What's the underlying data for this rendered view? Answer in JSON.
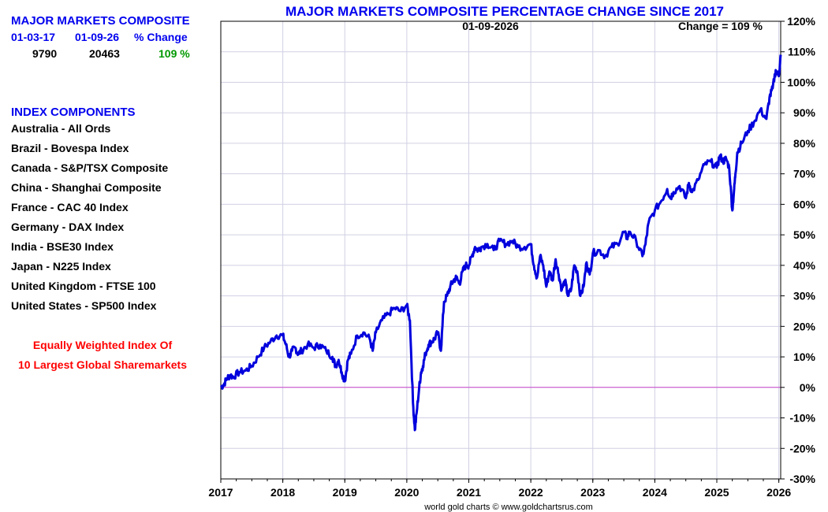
{
  "summary": {
    "title": "MAJOR MARKETS COMPOSITE",
    "col1_header": "01-03-17",
    "col2_header": "01-09-26",
    "col3_header": "% Change",
    "col1_value": "9790",
    "col2_value": "20463",
    "col3_value": "109 %"
  },
  "components": {
    "title": "INDEX COMPONENTS",
    "items": [
      "Australia - All Ords",
      "Brazil - Bovespa Index",
      "Canada - S&P/TSX Composite",
      "China - Shanghai Composite",
      "France - CAC 40 Index",
      "Germany - DAX Index",
      "India - BSE30 Index",
      "Japan - N225 Index",
      "United Kingdom - FTSE 100",
      "United States - SP500 Index"
    ]
  },
  "note": {
    "line1": "Equally Weighted Index Of",
    "line2": "10 Largest Global Sharemarkets"
  },
  "colors": {
    "series": "#0000dd",
    "zero_line": "#cc44cc",
    "grid": "#d0d0e4",
    "title": "#0000ee"
  },
  "chart_data": {
    "type": "line",
    "title": "MAJOR MARKETS COMPOSITE PERCENTAGE CHANGE SINCE 2017",
    "date_label": "01-09-2026",
    "change_label": "Change = 109 %",
    "credit": "world gold charts © www.goldchartsrus.com",
    "xlabel": "",
    "ylabel": "",
    "x_tick_labels": [
      "2017",
      "2018",
      "2019",
      "2020",
      "2021",
      "2022",
      "2023",
      "2024",
      "2025",
      "2026"
    ],
    "y_tick_labels": [
      "120%",
      "110%",
      "100%",
      "90%",
      "80%",
      "70%",
      "60%",
      "50%",
      "40%",
      "30%",
      "20%",
      "10%",
      "0%",
      "-10%",
      "-20%",
      "-30%"
    ],
    "xlim": [
      2017.0,
      2026.03
    ],
    "ylim": [
      -30,
      120
    ],
    "grid": true,
    "zero_line": 0,
    "series": [
      {
        "name": "Percentage change",
        "x": [
          2017.0,
          2017.05,
          2017.1,
          2017.15,
          2017.2,
          2017.3,
          2017.4,
          2017.5,
          2017.6,
          2017.7,
          2017.8,
          2017.9,
          2018.0,
          2018.05,
          2018.1,
          2018.15,
          2018.2,
          2018.25,
          2018.3,
          2018.4,
          2018.5,
          2018.6,
          2018.7,
          2018.8,
          2018.85,
          2018.9,
          2018.95,
          2019.0,
          2019.05,
          2019.1,
          2019.2,
          2019.3,
          2019.4,
          2019.45,
          2019.5,
          2019.6,
          2019.7,
          2019.8,
          2019.9,
          2020.0,
          2020.05,
          2020.1,
          2020.13,
          2020.16,
          2020.2,
          2020.23,
          2020.26,
          2020.3,
          2020.35,
          2020.4,
          2020.45,
          2020.5,
          2020.55,
          2020.6,
          2020.65,
          2020.7,
          2020.75,
          2020.8,
          2020.85,
          2020.9,
          2020.95,
          2021.0,
          2021.05,
          2021.1,
          2021.15,
          2021.2,
          2021.3,
          2021.4,
          2021.5,
          2021.6,
          2021.7,
          2021.8,
          2021.9,
          2022.0,
          2022.05,
          2022.1,
          2022.15,
          2022.2,
          2022.25,
          2022.3,
          2022.35,
          2022.4,
          2022.45,
          2022.5,
          2022.55,
          2022.6,
          2022.65,
          2022.7,
          2022.75,
          2022.8,
          2022.85,
          2022.9,
          2022.95,
          2023.0,
          2023.1,
          2023.2,
          2023.3,
          2023.4,
          2023.5,
          2023.55,
          2023.6,
          2023.7,
          2023.8,
          2023.85,
          2023.9,
          2024.0,
          2024.1,
          2024.2,
          2024.25,
          2024.3,
          2024.4,
          2024.5,
          2024.55,
          2024.6,
          2024.7,
          2024.8,
          2024.9,
          2025.0,
          2025.05,
          2025.1,
          2025.15,
          2025.2,
          2025.25,
          2025.28,
          2025.3,
          2025.33,
          2025.4,
          2025.5,
          2025.6,
          2025.7,
          2025.8,
          2025.85,
          2025.9,
          2025.95,
          2026.0,
          2026.03
        ],
        "values": [
          0,
          1,
          3,
          4,
          3.5,
          5,
          5.5,
          7,
          10,
          13,
          15,
          17,
          17,
          14,
          10,
          12,
          13,
          11,
          12,
          14,
          13,
          14,
          12,
          10,
          7,
          9,
          5,
          2,
          9,
          11,
          17,
          18,
          16,
          12,
          18,
          22,
          24,
          26,
          25,
          27,
          22,
          -5,
          -14,
          -8,
          0,
          5,
          7,
          11,
          14,
          15,
          16,
          18,
          12,
          28,
          30,
          33,
          35,
          36,
          34,
          38,
          40,
          40,
          43,
          46,
          45,
          46,
          47,
          45,
          48,
          47,
          48,
          46,
          46,
          47,
          40,
          36,
          43,
          40,
          33,
          38,
          35,
          42,
          37,
          32,
          35,
          30,
          32,
          40,
          38,
          30,
          33,
          41,
          37,
          44,
          45,
          43,
          46,
          47,
          51,
          49,
          51,
          48,
          43,
          47,
          54,
          58,
          61,
          65,
          62,
          64,
          66,
          62,
          67,
          64,
          68,
          73,
          74,
          72,
          76,
          74,
          75,
          72,
          58,
          65,
          70,
          77,
          80,
          84,
          87,
          91,
          88,
          95,
          98,
          104,
          102,
          109
        ]
      }
    ]
  }
}
